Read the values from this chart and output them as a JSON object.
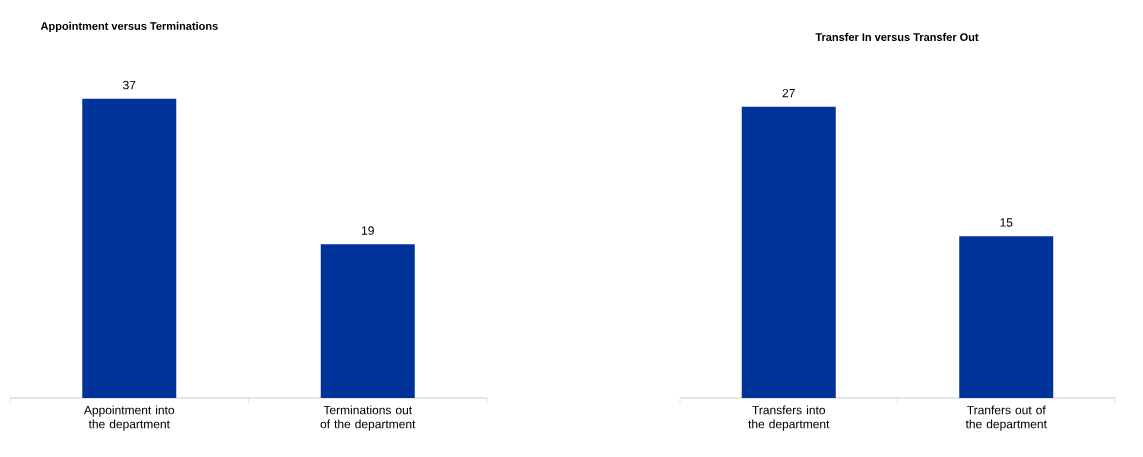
{
  "chart_data": [
    {
      "type": "bar",
      "title": "Appointment versus Terminations",
      "categories": [
        "Appointment into the department",
        "Terminations out of the department"
      ],
      "values": [
        37,
        19
      ],
      "color": "#003399",
      "data_labels": true
    },
    {
      "type": "bar",
      "title": "Transfer In versus Transfer Out",
      "categories": [
        "Transfers into the department",
        "Tranfers out of the department"
      ],
      "values": [
        27,
        15
      ],
      "color": "#003399",
      "data_labels": true
    }
  ]
}
